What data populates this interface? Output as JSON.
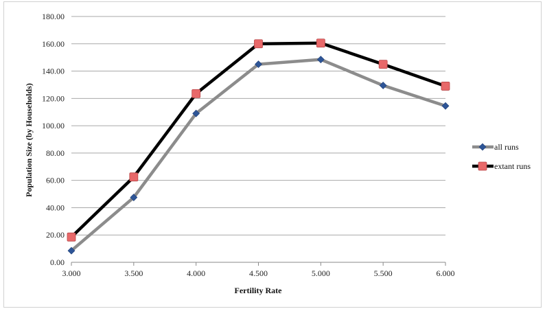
{
  "chart_data": {
    "type": "line",
    "xlabel": "Fertility Rate",
    "ylabel": "Population Size (by Households)",
    "x": [
      3.0,
      3.5,
      4.0,
      4.5,
      5.0,
      5.5,
      6.0
    ],
    "x_tick_labels": [
      "3.000",
      "3.500",
      "4.000",
      "4.500",
      "5.000",
      "5.500",
      "6.000"
    ],
    "ylim": [
      0,
      180
    ],
    "y_ticks": [
      0,
      20,
      40,
      60,
      80,
      100,
      120,
      140,
      160,
      180
    ],
    "y_tick_labels": [
      "0.00",
      "20.00",
      "40.00",
      "60.00",
      "80.00",
      "100.00",
      "120.00",
      "140.00",
      "160.00",
      "180.00"
    ],
    "grid": true,
    "legend_position": "right",
    "series": [
      {
        "name": "all runs",
        "values": [
          8.5,
          47.5,
          109,
          145,
          148.5,
          129.5,
          114.5
        ],
        "color": "#8c8c8c",
        "marker": "diamond",
        "marker_color": "#2e5597"
      },
      {
        "name": "extant runs",
        "values": [
          18.5,
          62.5,
          123.5,
          160,
          160.5,
          145,
          129
        ],
        "color": "#000000",
        "marker": "square",
        "marker_color": "#e8696a"
      }
    ]
  }
}
